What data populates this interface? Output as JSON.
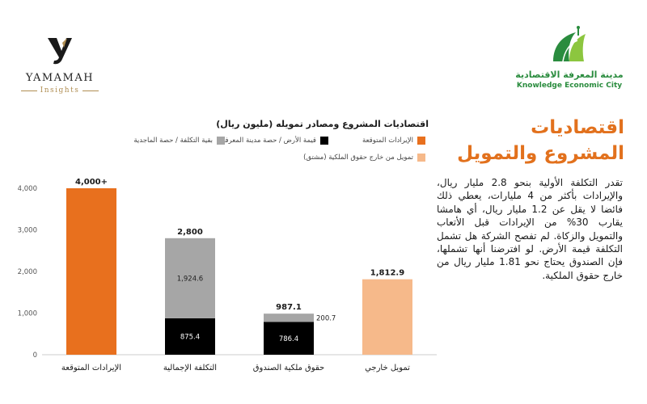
{
  "logos": {
    "yamamah": {
      "name": "YAMAMAH",
      "sub": "Insights"
    },
    "kec": {
      "ar": "مدينة المعرفة الاقتصادية",
      "en": "Knowledge Economic City"
    }
  },
  "heading": "اقتصاديات المشروع والتمويل",
  "body": "تقدر التكلفة الأولية بنحو 2.8 مليار ريال، والإيرادات بأكثر من 4 مليارات، يعطي ذلك فائضا لا يقل عن 1.2 مليار ريال، أي هامشا يقارب 30% من الإيرادات قبل الأتعاب والتمويل والزكاة. لم تفصح الشركة هل تشمل التكلفة قيمة الأرض. لو افترضنا أنها تشملها، فإن الصندوق يحتاج نحو 1.81 مليار ريال من خارج حقوق الملكية.",
  "colors": {
    "orange": "#e8701e",
    "black": "#000000",
    "gray": "#a6a6a6",
    "peach": "#f6b98a",
    "accent": "#e2711d",
    "green": "#2a8c3e"
  },
  "chart_data": {
    "type": "bar",
    "stacked": true,
    "title": "اقتصاديات المشروع ومصادر تمويله (مليون ريال)",
    "categories": [
      "الإيرادات المتوقعة",
      "التكلفة الإجمالية",
      "حقوق ملكية الصندوق",
      "تمويل خارجي"
    ],
    "series": [
      {
        "name": "الإيرادات المتوقعة",
        "color": "#e8701e",
        "values": [
          4000,
          0,
          0,
          0
        ],
        "labels": [
          "",
          "",
          "",
          ""
        ]
      },
      {
        "name": "قيمة الأرض / حصة مدينة المعرفة",
        "color": "#000000",
        "values": [
          0,
          875.4,
          786.4,
          0
        ],
        "labels": [
          "",
          "875.4",
          "786.4",
          ""
        ]
      },
      {
        "name": "بقية التكلفة / حصة الماجدية",
        "color": "#a6a6a6",
        "values": [
          0,
          1924.6,
          200.7,
          0
        ],
        "labels": [
          "",
          "1,924.6",
          "200.7",
          ""
        ]
      },
      {
        "name": "تمويل من خارج حقوق الملكية (مشتق)",
        "color": "#f6b98a",
        "values": [
          0,
          0,
          0,
          1812.9
        ],
        "labels": [
          "",
          "",
          "",
          ""
        ]
      }
    ],
    "totals": [
      "4,000+",
      "2,800",
      "987.1",
      "1,812.9"
    ],
    "ylim": [
      0,
      4000
    ],
    "yticks": [
      0,
      1000,
      2000,
      3000,
      4000
    ],
    "ytick_labels": [
      "0",
      "1,000",
      "2,000",
      "3,000",
      "4,000"
    ],
    "grid": false,
    "legend": "top"
  }
}
